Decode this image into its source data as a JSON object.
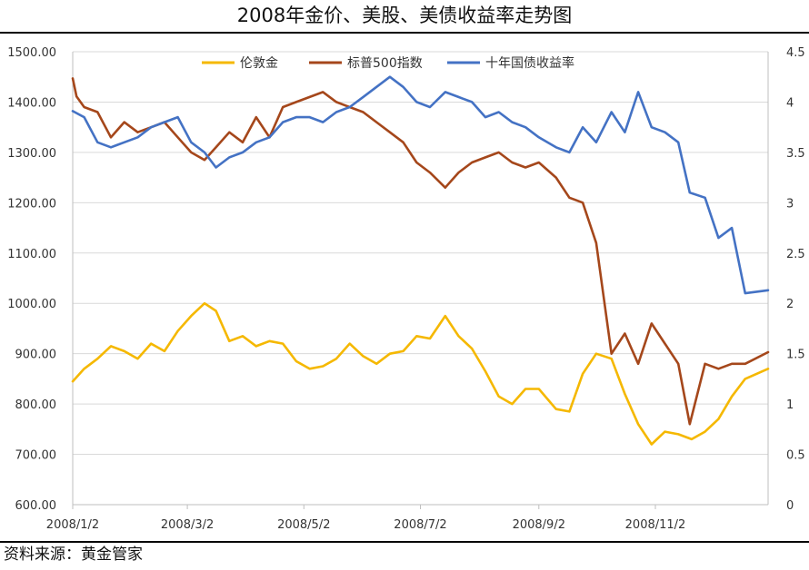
{
  "title": "2008年金价、美股、美债收益率走势图",
  "source": "资料来源：黄金管家",
  "chart_data": {
    "type": "line",
    "title": "2008年金价、美股、美债收益率走势图",
    "x_ticks": [
      "2008/1/2",
      "2008/3/2",
      "2008/5/2",
      "2008/7/2",
      "2008/9/2",
      "2008/11/2"
    ],
    "x_range": [
      "2008-01-02",
      "2008-12-31"
    ],
    "y_left": {
      "range": [
        600,
        1500
      ],
      "ticks": [
        "600.00",
        "700.00",
        "800.00",
        "900.00",
        "1000.00",
        "1100.00",
        "1200.00",
        "1300.00",
        "1400.00",
        "1500.00"
      ]
    },
    "y_right": {
      "range": [
        0,
        4.5
      ],
      "ticks": [
        "0",
        "0.5",
        "1",
        "1.5",
        "2",
        "2.5",
        "3",
        "3.5",
        "4",
        "4.5"
      ]
    },
    "legend_position": "top",
    "grid": "horizontal",
    "series": [
      {
        "name": "伦敦金",
        "color": "#F5B800",
        "axis": "left",
        "x": [
          "2008-01-02",
          "2008-01-08",
          "2008-01-15",
          "2008-01-22",
          "2008-01-29",
          "2008-02-05",
          "2008-02-12",
          "2008-02-19",
          "2008-02-26",
          "2008-03-04",
          "2008-03-11",
          "2008-03-17",
          "2008-03-24",
          "2008-03-31",
          "2008-04-07",
          "2008-04-14",
          "2008-04-21",
          "2008-04-28",
          "2008-05-05",
          "2008-05-12",
          "2008-05-19",
          "2008-05-26",
          "2008-06-02",
          "2008-06-09",
          "2008-06-16",
          "2008-06-23",
          "2008-06-30",
          "2008-07-07",
          "2008-07-15",
          "2008-07-22",
          "2008-07-29",
          "2008-08-05",
          "2008-08-12",
          "2008-08-19",
          "2008-08-26",
          "2008-09-02",
          "2008-09-11",
          "2008-09-18",
          "2008-09-25",
          "2008-10-02",
          "2008-10-10",
          "2008-10-17",
          "2008-10-24",
          "2008-10-31",
          "2008-11-07",
          "2008-11-14",
          "2008-11-21",
          "2008-11-28",
          "2008-12-05",
          "2008-12-12",
          "2008-12-19",
          "2008-12-31"
        ],
        "values": [
          845,
          870,
          890,
          915,
          905,
          890,
          920,
          905,
          945,
          975,
          1000,
          985,
          925,
          935,
          915,
          925,
          920,
          885,
          870,
          875,
          890,
          920,
          895,
          880,
          900,
          905,
          935,
          930,
          975,
          935,
          910,
          865,
          815,
          800,
          830,
          830,
          790,
          785,
          860,
          900,
          890,
          820,
          760,
          720,
          745,
          740,
          730,
          745,
          770,
          815,
          850,
          870
        ]
      },
      {
        "name": "标普500指数",
        "color": "#A5471B",
        "axis": "left",
        "x": [
          "2008-01-02",
          "2008-01-04",
          "2008-01-08",
          "2008-01-15",
          "2008-01-22",
          "2008-01-29",
          "2008-02-05",
          "2008-02-12",
          "2008-02-19",
          "2008-02-26",
          "2008-03-04",
          "2008-03-11",
          "2008-03-17",
          "2008-03-24",
          "2008-03-31",
          "2008-04-07",
          "2008-04-14",
          "2008-04-21",
          "2008-04-28",
          "2008-05-05",
          "2008-05-12",
          "2008-05-19",
          "2008-05-26",
          "2008-06-02",
          "2008-06-09",
          "2008-06-16",
          "2008-06-23",
          "2008-06-30",
          "2008-07-07",
          "2008-07-15",
          "2008-07-22",
          "2008-07-29",
          "2008-08-05",
          "2008-08-12",
          "2008-08-19",
          "2008-08-26",
          "2008-09-02",
          "2008-09-11",
          "2008-09-18",
          "2008-09-25",
          "2008-10-02",
          "2008-10-10",
          "2008-10-17",
          "2008-10-24",
          "2008-10-31",
          "2008-11-07",
          "2008-11-14",
          "2008-11-20",
          "2008-11-28",
          "2008-12-05",
          "2008-12-12",
          "2008-12-19",
          "2008-12-31"
        ],
        "values": [
          1447,
          1411,
          1390,
          1380,
          1330,
          1360,
          1340,
          1350,
          1360,
          1330,
          1300,
          1285,
          1310,
          1340,
          1320,
          1370,
          1330,
          1390,
          1400,
          1410,
          1420,
          1400,
          1390,
          1380,
          1360,
          1340,
          1320,
          1280,
          1260,
          1230,
          1260,
          1280,
          1290,
          1300,
          1280,
          1270,
          1280,
          1250,
          1210,
          1200,
          1120,
          900,
          940,
          880,
          960,
          920,
          880,
          760,
          880,
          870,
          880,
          880,
          903
        ]
      },
      {
        "name": "十年国债收益率",
        "color": "#4472C4",
        "axis": "right",
        "x": [
          "2008-01-02",
          "2008-01-08",
          "2008-01-15",
          "2008-01-22",
          "2008-01-29",
          "2008-02-05",
          "2008-02-12",
          "2008-02-19",
          "2008-02-26",
          "2008-03-04",
          "2008-03-11",
          "2008-03-17",
          "2008-03-24",
          "2008-03-31",
          "2008-04-07",
          "2008-04-14",
          "2008-04-21",
          "2008-04-28",
          "2008-05-05",
          "2008-05-12",
          "2008-05-19",
          "2008-05-26",
          "2008-06-02",
          "2008-06-09",
          "2008-06-16",
          "2008-06-23",
          "2008-06-30",
          "2008-07-07",
          "2008-07-15",
          "2008-07-22",
          "2008-07-29",
          "2008-08-05",
          "2008-08-12",
          "2008-08-19",
          "2008-08-26",
          "2008-09-02",
          "2008-09-11",
          "2008-09-18",
          "2008-09-25",
          "2008-10-02",
          "2008-10-10",
          "2008-10-17",
          "2008-10-24",
          "2008-10-31",
          "2008-11-07",
          "2008-11-14",
          "2008-11-20",
          "2008-11-28",
          "2008-12-05",
          "2008-12-12",
          "2008-12-19",
          "2008-12-31"
        ],
        "values": [
          3.91,
          3.85,
          3.6,
          3.55,
          3.6,
          3.65,
          3.75,
          3.8,
          3.85,
          3.6,
          3.5,
          3.35,
          3.45,
          3.5,
          3.6,
          3.65,
          3.8,
          3.85,
          3.85,
          3.8,
          3.9,
          3.95,
          4.05,
          4.15,
          4.25,
          4.15,
          4.0,
          3.95,
          4.1,
          4.05,
          4.0,
          3.85,
          3.9,
          3.8,
          3.75,
          3.65,
          3.55,
          3.5,
          3.75,
          3.6,
          3.9,
          3.7,
          4.1,
          3.75,
          3.7,
          3.6,
          3.1,
          3.05,
          2.65,
          2.75,
          2.1,
          2.13
        ]
      }
    ]
  }
}
